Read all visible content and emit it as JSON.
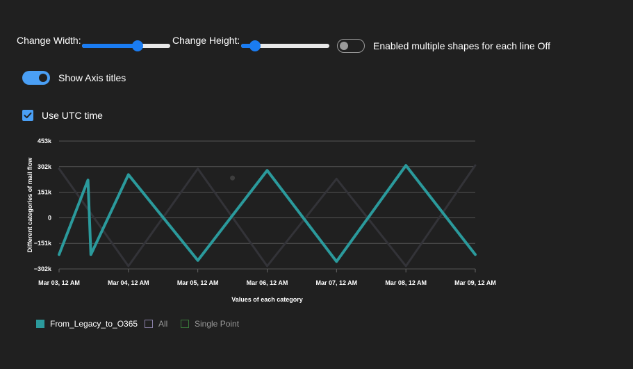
{
  "controls": {
    "width_label": "Change Width:",
    "width_value": 0.63,
    "height_label": "Change Height:",
    "height_value": 0.16,
    "multi_shapes_label": "Enabled multiple shapes for each line Off",
    "multi_shapes_on": false,
    "axis_titles_label": "Show Axis titles",
    "axis_titles_on": true,
    "utc_label": "Use UTC time",
    "utc_checked": true
  },
  "chart_data": {
    "type": "line",
    "xlabel": "Values of each category",
    "ylabel": "Different categories of mail flow",
    "ylim": [
      -302000,
      453000
    ],
    "y_ticks": [
      453000,
      302000,
      151000,
      0,
      -151000,
      -302000
    ],
    "y_tick_labels": [
      "453k",
      "302k",
      "151k",
      "0",
      "−151k",
      "−302k"
    ],
    "xlim": [
      "2023-03-03T00:00",
      "2023-03-09T00:00"
    ],
    "x_tick_labels": [
      "Mar 03, 12 AM",
      "Mar 04, 12 AM",
      "Mar 05, 12 AM",
      "Mar 06, 12 AM",
      "Mar 07, 12 AM",
      "Mar 08, 12 AM",
      "Mar 09, 12 AM"
    ],
    "grid": true,
    "legend_position": "bottom-left",
    "series": [
      {
        "name": "From_Legacy_to_O365",
        "color": "#2b9a9c",
        "emphasis": true,
        "points": [
          [
            "2023-03-03T00:00",
            -217000
          ],
          [
            "2023-03-03T10:00",
            223000
          ],
          [
            "2023-03-03T11:00",
            -217000
          ],
          [
            "2023-03-04T00:00",
            255000
          ],
          [
            "2023-03-05T00:00",
            -252000
          ],
          [
            "2023-03-06T00:00",
            280000
          ],
          [
            "2023-03-07T00:00",
            -258000
          ],
          [
            "2023-03-08T00:00",
            309000
          ],
          [
            "2023-03-09T00:00",
            -217000
          ]
        ]
      },
      {
        "name": "All",
        "color": "#8a80a8",
        "emphasis": false,
        "points": [
          [
            "2023-03-03T00:00",
            290000
          ],
          [
            "2023-03-04T00:00",
            -285000
          ],
          [
            "2023-03-05T00:00",
            290000
          ],
          [
            "2023-03-06T00:00",
            -285000
          ],
          [
            "2023-03-07T00:00",
            230000
          ],
          [
            "2023-03-08T00:00",
            -285000
          ],
          [
            "2023-03-09T00:00",
            310000
          ]
        ]
      },
      {
        "name": "Single Point",
        "color": "#3a7a3a",
        "emphasis": false,
        "points": [
          [
            "2023-03-05T12:00",
            235000
          ]
        ]
      }
    ]
  }
}
